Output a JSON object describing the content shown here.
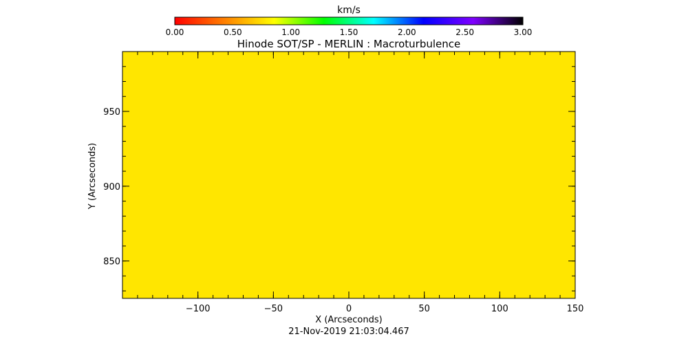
{
  "colorbar": {
    "unit_label": "km/s",
    "range": [
      0.0,
      3.0
    ],
    "tick_values": [
      0.0,
      0.5,
      1.0,
      1.5,
      2.0,
      2.5,
      3.0
    ],
    "tick_labels": [
      "0.00",
      "0.50",
      "1.00",
      "1.50",
      "2.00",
      "2.50",
      "3.00"
    ],
    "stops": [
      "#ff0000",
      "#ff8000",
      "#ffff00",
      "#00ff00",
      "#00ffff",
      "#0000ff",
      "#7f00ff",
      "#000000"
    ]
  },
  "timestamp": "21-Nov-2019 21:03:04.467",
  "chart_data": {
    "type": "heatmap",
    "title": "Hinode SOT/SP - MERLIN : Macroturbulence",
    "xlabel": "X (Arcseconds)",
    "ylabel": "Y (Arcseconds)",
    "xlim": [
      -150,
      150
    ],
    "ylim": [
      825,
      990
    ],
    "x_ticks": [
      -100,
      -50,
      0,
      50,
      100,
      150
    ],
    "x_tick_labels": [
      "−100",
      "−50",
      "0",
      "50",
      "100",
      "150"
    ],
    "x_minor_step": 10,
    "y_ticks": [
      850,
      900,
      950
    ],
    "y_tick_labels": [
      "850",
      "900",
      "950"
    ],
    "y_minor_step": 10,
    "grid": false,
    "fill_value_kms": 0.75,
    "fill_color": "#ffe600"
  }
}
